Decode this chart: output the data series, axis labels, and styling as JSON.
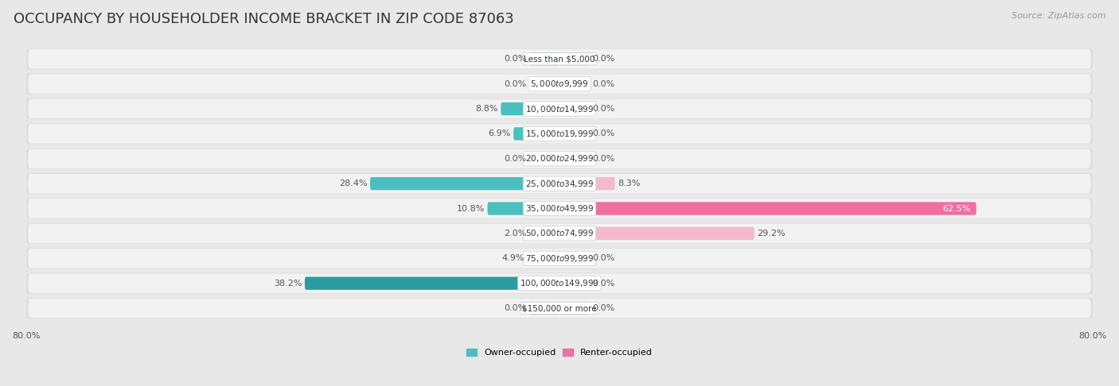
{
  "title": "OCCUPANCY BY HOUSEHOLDER INCOME BRACKET IN ZIP CODE 87063",
  "source": "Source: ZipAtlas.com",
  "categories": [
    "Less than $5,000",
    "$5,000 to $9,999",
    "$10,000 to $14,999",
    "$15,000 to $19,999",
    "$20,000 to $24,999",
    "$25,000 to $34,999",
    "$35,000 to $49,999",
    "$50,000 to $74,999",
    "$75,000 to $99,999",
    "$100,000 to $149,999",
    "$150,000 or more"
  ],
  "owner_values": [
    0.0,
    0.0,
    8.8,
    6.9,
    0.0,
    28.4,
    10.8,
    2.0,
    4.9,
    38.2,
    0.0
  ],
  "renter_values": [
    0.0,
    0.0,
    0.0,
    0.0,
    0.0,
    8.3,
    62.5,
    29.2,
    0.0,
    0.0,
    0.0
  ],
  "owner_color_light": "#7ECECE",
  "owner_color_medium": "#4BBFBF",
  "owner_color_dark": "#2A9DA0",
  "renter_color_light": "#F5B8CC",
  "renter_color_dark": "#EE6FA0",
  "row_bg_color": "#EAEAEA",
  "row_bg_inner": "#F5F5F5",
  "background_color": "#E8E8E8",
  "axis_limit": 80.0,
  "min_bar_val": 4.5,
  "bar_height": 0.52,
  "title_fontsize": 13,
  "label_fontsize": 8.0,
  "cat_fontsize": 7.5,
  "tick_fontsize": 8.0,
  "source_fontsize": 8.0
}
